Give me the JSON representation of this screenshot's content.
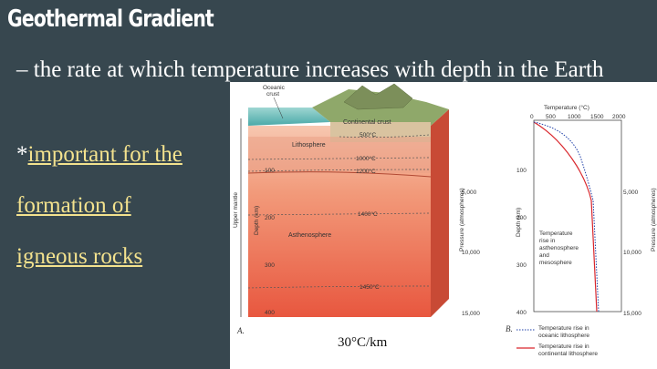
{
  "slide": {
    "title": "Geothermal Gradient",
    "definition": "– the rate at which temperature increases with depth in the Earth",
    "bullet_prefix": "*",
    "bullet_line1": "important for the",
    "bullet_line2": "formation of",
    "bullet_line3": "igneous rocks"
  },
  "figure_a": {
    "oceanic_crust": [
      "Oceanic",
      "crust"
    ],
    "continental_crust": "Continental crust",
    "lithosphere": "Lithosphere",
    "asthenosphere": "Asthenosphere",
    "upper_mantle": "Upper mantle",
    "depth_axis": "Depth (km)",
    "depth_ticks": [
      "100",
      "200",
      "300",
      "400"
    ],
    "isotherms": [
      "500°C",
      "1000°C",
      "1200°C",
      "1400°C",
      "1450°C"
    ],
    "pressure_axis": "Pressure (atmospheres)",
    "pressure_ticks": [
      "5,000",
      "10,000",
      "15,000"
    ],
    "panel_letter": "A.",
    "gradient_label": "30°C/km"
  },
  "figure_b": {
    "temp_axis_title": "Temperature (°C)",
    "temp_ticks": [
      "0",
      "500",
      "1000",
      "1500",
      "2000"
    ],
    "depth_axis": "Depth (km)",
    "depth_ticks": [
      "100",
      "200",
      "300",
      "400"
    ],
    "pressure_axis": "Pressure (atmospheres)",
    "pressure_ticks": [
      "5,000",
      "10,000",
      "15,000"
    ],
    "annotation": [
      "Temperature",
      "rise in",
      "asthenosphere",
      "and",
      "mesosphere"
    ],
    "panel_letter": "B.",
    "legend": [
      {
        "lines": [
          "Temperature rise in",
          "oceanic lithosphere"
        ],
        "style": "dotted",
        "color": "#1e3fa8"
      },
      {
        "lines": [
          "Temperature rise in",
          "continental lithosphere"
        ],
        "style": "solid",
        "color": "#d9262c"
      }
    ]
  }
}
